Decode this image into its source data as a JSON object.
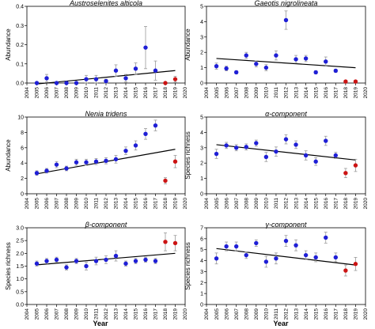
{
  "colors": {
    "regular": "#1f1fd6",
    "outlier": "#cc1414",
    "errorbar": "#999999",
    "trend": "#000000"
  },
  "xlabel": "Year",
  "chart_data": [
    {
      "type": "scatter",
      "title": "Austroselenites alticola",
      "ylabel": "Abundance",
      "xlim": [
        2004,
        2020
      ],
      "ylim": [
        0,
        0.4
      ],
      "yticks": [
        0.0,
        0.1,
        0.2,
        0.3,
        0.4
      ],
      "ytick_labels": [
        "0.0",
        "0.1",
        "0.2",
        "0.3",
        "0.4"
      ],
      "series": [
        {
          "x": [
            2005,
            2006,
            2007,
            2008,
            2009,
            2010,
            2011,
            2012,
            2013,
            2014,
            2015,
            2016,
            2017
          ],
          "y": [
            0.0,
            0.025,
            0.0,
            0.0,
            0.0,
            0.02,
            0.02,
            0.01,
            0.065,
            0.025,
            0.075,
            0.185,
            0.065
          ],
          "err": [
            0,
            0.02,
            0,
            0,
            0,
            0.02,
            0.02,
            0.01,
            0.03,
            0.02,
            0.03,
            0.11,
            0.05
          ]
        },
        {
          "outlier": true,
          "x": [
            2018,
            2019
          ],
          "y": [
            0.0,
            0.02
          ],
          "err": [
            0,
            0.015
          ]
        }
      ],
      "trend": {
        "x": [
          2005,
          2019
        ],
        "y": [
          -0.005,
          0.065
        ]
      }
    },
    {
      "type": "scatter",
      "title": "Gaeotis nigrolineata",
      "ylabel": "Abundance",
      "xlim": [
        2004,
        2020
      ],
      "ylim": [
        0,
        5
      ],
      "yticks": [
        0,
        1,
        2,
        3,
        4,
        5
      ],
      "ytick_labels": [
        "0",
        "1",
        "2",
        "3",
        "4",
        "5"
      ],
      "series": [
        {
          "x": [
            2005,
            2006,
            2007,
            2008,
            2009,
            2010,
            2011,
            2012,
            2013,
            2014,
            2015,
            2016,
            2017
          ],
          "y": [
            1.1,
            0.95,
            0.7,
            1.8,
            1.25,
            1.0,
            1.8,
            4.1,
            1.55,
            1.6,
            0.7,
            1.4,
            0.8
          ],
          "err": [
            0.2,
            0.15,
            0.1,
            0.2,
            0.2,
            0.2,
            0.3,
            0.6,
            0.25,
            0.2,
            0.1,
            0.3,
            0.1
          ]
        },
        {
          "outlier": true,
          "x": [
            2018,
            2019
          ],
          "y": [
            0.1,
            0.1
          ],
          "err": [
            0,
            0
          ]
        }
      ],
      "trend": {
        "x": [
          2005,
          2019
        ],
        "y": [
          1.6,
          1.0
        ]
      }
    },
    {
      "type": "scatter",
      "title": "Nenia tridens",
      "ylabel": "Abundance",
      "xlim": [
        2004,
        2020
      ],
      "ylim": [
        0,
        10
      ],
      "yticks": [
        0,
        2,
        4,
        6,
        8,
        10
      ],
      "ytick_labels": [
        "0",
        "2",
        "4",
        "6",
        "8",
        "10"
      ],
      "series": [
        {
          "x": [
            2005,
            2006,
            2007,
            2008,
            2009,
            2010,
            2011,
            2012,
            2013,
            2014,
            2015,
            2016,
            2017
          ],
          "y": [
            2.7,
            3.0,
            3.8,
            3.3,
            4.1,
            4.1,
            4.2,
            4.3,
            4.5,
            5.6,
            6.3,
            7.8,
            8.9
          ],
          "err": [
            0.3,
            0.3,
            0.4,
            0.3,
            0.4,
            0.4,
            0.4,
            0.4,
            0.5,
            0.5,
            0.6,
            0.7,
            0.7
          ]
        },
        {
          "outlier": true,
          "x": [
            2018,
            2019
          ],
          "y": [
            1.7,
            4.2
          ],
          "err": [
            0.4,
            0.8
          ]
        }
      ],
      "trend": {
        "x": [
          2005,
          2019
        ],
        "y": [
          2.6,
          5.8
        ]
      }
    },
    {
      "type": "scatter",
      "title": "α-component",
      "ylabel": "Species richness",
      "xlim": [
        2004,
        2020
      ],
      "ylim": [
        0,
        5
      ],
      "yticks": [
        0,
        1,
        2,
        3,
        4,
        5
      ],
      "ytick_labels": [
        "0",
        "1",
        "2",
        "3",
        "4",
        "5"
      ],
      "series": [
        {
          "x": [
            2005,
            2006,
            2007,
            2008,
            2009,
            2010,
            2011,
            2012,
            2013,
            2014,
            2015,
            2016,
            2017
          ],
          "y": [
            2.6,
            3.15,
            3.0,
            3.05,
            3.3,
            2.4,
            2.75,
            3.55,
            3.2,
            2.5,
            2.1,
            3.45,
            2.5
          ],
          "err": [
            0.3,
            0.2,
            0.2,
            0.2,
            0.2,
            0.3,
            0.3,
            0.3,
            0.25,
            0.3,
            0.25,
            0.3,
            0.2
          ]
        },
        {
          "outlier": true,
          "x": [
            2018,
            2019
          ],
          "y": [
            1.35,
            1.85
          ],
          "err": [
            0.3,
            0.4
          ]
        }
      ],
      "trend": {
        "x": [
          2005,
          2019
        ],
        "y": [
          3.2,
          2.2
        ]
      }
    },
    {
      "type": "scatter",
      "title": "β-component",
      "ylabel": "Species richness",
      "xlim": [
        2004,
        2020
      ],
      "ylim": [
        0,
        3
      ],
      "yticks": [
        0.0,
        0.5,
        1.0,
        1.5,
        2.0,
        2.5,
        3.0
      ],
      "ytick_labels": [
        "0.0",
        "0.5",
        "1.0",
        "1.5",
        "2.0",
        "2.5",
        "3.0"
      ],
      "series": [
        {
          "x": [
            2005,
            2006,
            2007,
            2008,
            2009,
            2010,
            2011,
            2012,
            2013,
            2014,
            2015,
            2016,
            2017
          ],
          "y": [
            1.6,
            1.7,
            1.75,
            1.45,
            1.7,
            1.5,
            1.7,
            1.75,
            1.9,
            1.6,
            1.7,
            1.75,
            1.7
          ],
          "err": [
            0.1,
            0.1,
            0.1,
            0.1,
            0.1,
            0.15,
            0.15,
            0.15,
            0.2,
            0.1,
            0.1,
            0.1,
            0.1
          ]
        },
        {
          "outlier": true,
          "x": [
            2018,
            2019
          ],
          "y": [
            2.45,
            2.4
          ],
          "err": [
            0.35,
            0.3
          ]
        }
      ],
      "trend": {
        "x": [
          2005,
          2019
        ],
        "y": [
          1.55,
          2.0
        ]
      }
    },
    {
      "type": "scatter",
      "title": "γ-component",
      "ylabel": "Species richness",
      "xlim": [
        2004,
        2020
      ],
      "ylim": [
        0,
        7
      ],
      "yticks": [
        0,
        1,
        2,
        3,
        4,
        5,
        6,
        7
      ],
      "ytick_labels": [
        "0",
        "1",
        "2",
        "3",
        "4",
        "5",
        "6",
        "7"
      ],
      "series": [
        {
          "x": [
            2005,
            2006,
            2007,
            2008,
            2009,
            2010,
            2011,
            2012,
            2013,
            2014,
            2015,
            2016,
            2017
          ],
          "y": [
            4.2,
            5.3,
            5.3,
            4.5,
            5.6,
            3.9,
            4.2,
            5.8,
            5.4,
            4.5,
            4.3,
            6.1,
            4.3
          ],
          "err": [
            0.5,
            0.4,
            0.4,
            0.3,
            0.3,
            0.5,
            0.5,
            0.5,
            0.5,
            0.4,
            0.4,
            0.5,
            0.4
          ]
        },
        {
          "outlier": true,
          "x": [
            2018,
            2019
          ],
          "y": [
            3.1,
            3.7
          ],
          "err": [
            0.5,
            0.6
          ]
        }
      ],
      "trend": {
        "x": [
          2005,
          2019
        ],
        "y": [
          5.1,
          3.6
        ]
      }
    }
  ]
}
